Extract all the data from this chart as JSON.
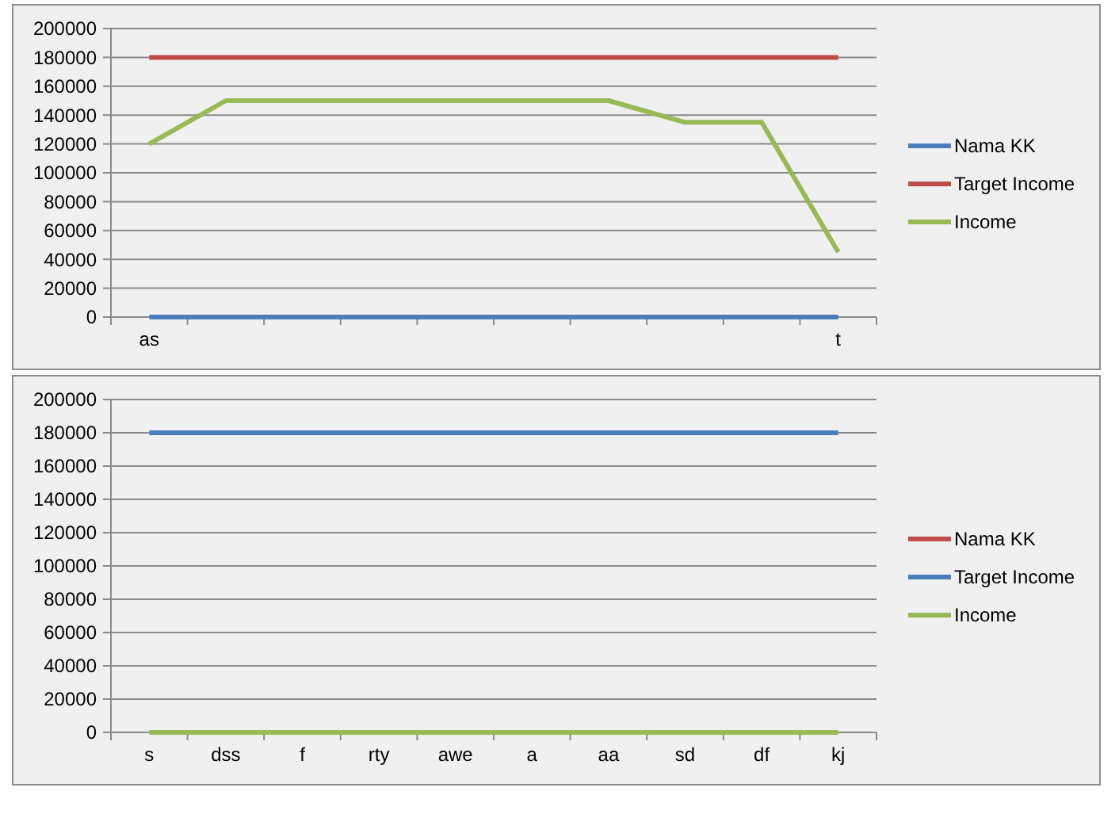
{
  "chart_data": [
    {
      "type": "line",
      "categories": [
        "as",
        null,
        null,
        null,
        null,
        null,
        null,
        null,
        null,
        "t"
      ],
      "ylim": [
        0,
        200000
      ],
      "yticks": [
        0,
        20000,
        40000,
        60000,
        80000,
        100000,
        120000,
        140000,
        160000,
        180000,
        200000
      ],
      "grid": "y",
      "legend": "right",
      "series": [
        {
          "name": "Nama KK",
          "color": "#4a7ebb",
          "values": [
            0,
            0,
            0,
            0,
            0,
            0,
            0,
            0,
            0,
            0
          ]
        },
        {
          "name": "Target Income",
          "color": "#be4b48",
          "values": [
            180000,
            180000,
            180000,
            180000,
            180000,
            180000,
            180000,
            180000,
            180000,
            180000
          ]
        },
        {
          "name": "Income",
          "color": "#98b954",
          "values": [
            120000,
            150000,
            150000,
            150000,
            150000,
            150000,
            150000,
            135000,
            135000,
            45000
          ]
        }
      ]
    },
    {
      "type": "line",
      "categories": [
        "s",
        "dss",
        "f",
        "rty",
        "awe",
        "a",
        "aa",
        "sd",
        "df",
        "kj"
      ],
      "ylim": [
        0,
        200000
      ],
      "yticks": [
        0,
        20000,
        40000,
        60000,
        80000,
        100000,
        120000,
        140000,
        160000,
        180000,
        200000
      ],
      "grid": "y",
      "legend": "right",
      "series": [
        {
          "name": "Nama KK",
          "color": "#be4b48",
          "values": [
            null,
            null,
            null,
            null,
            null,
            null,
            null,
            null,
            null,
            null
          ]
        },
        {
          "name": "Target Income",
          "color": "#4a7ebb",
          "values": [
            180000,
            180000,
            180000,
            180000,
            180000,
            180000,
            180000,
            180000,
            180000,
            180000
          ]
        },
        {
          "name": "Income",
          "color": "#98b954",
          "values": [
            0,
            0,
            0,
            0,
            0,
            0,
            0,
            0,
            0,
            0
          ]
        }
      ]
    }
  ]
}
